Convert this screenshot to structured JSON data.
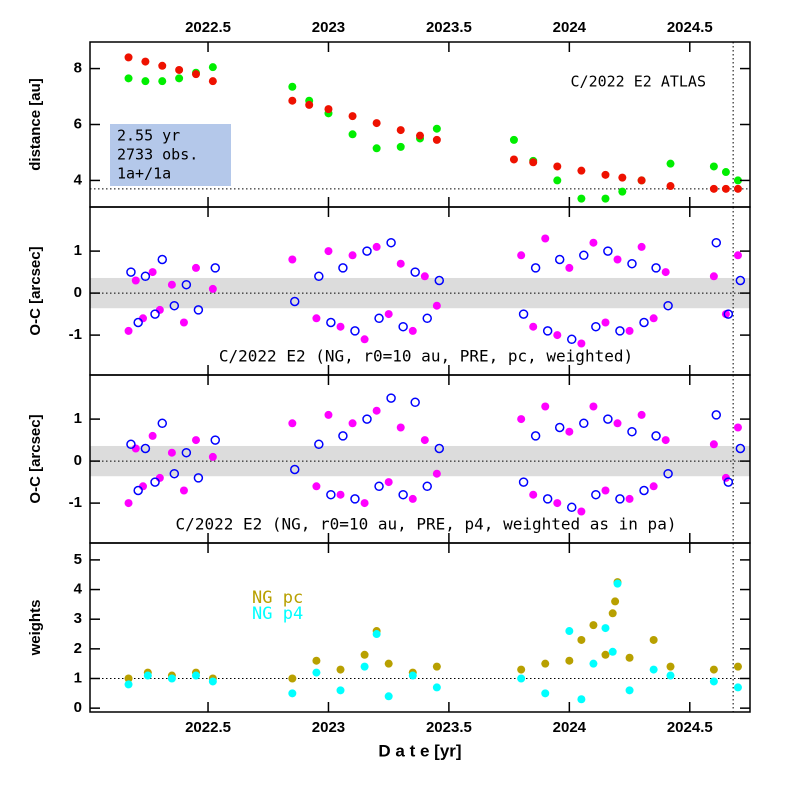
{
  "chart_data": [
    {
      "type": "scatter",
      "ylabel": "distance [au]",
      "annotation": "C/2022 E2 ATLAS",
      "info_box": [
        "2.55 yr",
        "2733 obs.",
        "1a+/1a"
      ],
      "xlim": [
        2022.01,
        2024.75
      ],
      "xticks": [
        2022.5,
        2023,
        2023.5,
        2024,
        2024.5
      ],
      "ylim": [
        3.05,
        8.95
      ],
      "yticks": [
        4,
        6,
        8
      ],
      "hline": 3.7,
      "vline": 2024.68,
      "series": [
        {
          "color": "#00ee00",
          "marker": "filled",
          "x": [
            2022.17,
            2022.24,
            2022.31,
            2022.38,
            2022.45,
            2022.52,
            2022.85,
            2022.92,
            2023.0,
            2023.1,
            2023.2,
            2023.3,
            2023.38,
            2023.45,
            2023.77,
            2023.85,
            2023.95,
            2024.05,
            2024.15,
            2024.22,
            2024.3,
            2024.42,
            2024.6,
            2024.65,
            2024.7
          ],
          "values": [
            7.65,
            7.55,
            7.55,
            7.65,
            7.85,
            8.05,
            7.35,
            6.85,
            6.4,
            5.65,
            5.15,
            5.2,
            5.5,
            5.85,
            5.45,
            4.7,
            4.0,
            3.35,
            3.35,
            3.6,
            4.0,
            4.6,
            4.5,
            4.3,
            4.0
          ]
        },
        {
          "color": "#ee1100",
          "marker": "filled",
          "x": [
            2022.17,
            2022.24,
            2022.31,
            2022.38,
            2022.45,
            2022.52,
            2022.85,
            2022.92,
            2023.0,
            2023.1,
            2023.2,
            2023.3,
            2023.38,
            2023.45,
            2023.77,
            2023.85,
            2023.95,
            2024.05,
            2024.15,
            2024.22,
            2024.3,
            2024.42,
            2024.6,
            2024.65,
            2024.7
          ],
          "values": [
            8.4,
            8.25,
            8.1,
            7.95,
            7.8,
            7.55,
            6.85,
            6.7,
            6.55,
            6.3,
            6.05,
            5.8,
            5.6,
            5.45,
            4.75,
            4.65,
            4.5,
            4.35,
            4.2,
            4.1,
            4.0,
            3.8,
            3.7,
            3.7,
            3.7
          ]
        }
      ]
    },
    {
      "type": "scatter",
      "ylabel": "O-C [arcsec]",
      "subtitle": "C/2022 E2 (NG, r0=10 au, PRE, pc, weighted)",
      "xlim": [
        2022.01,
        2024.75
      ],
      "xticks": [
        2022.5,
        2023,
        2023.5,
        2024,
        2024.5
      ],
      "ylim": [
        -1.95,
        2.05
      ],
      "yticks": [
        -1,
        0,
        1
      ],
      "hline": 0,
      "band": [
        -0.36,
        0.36
      ],
      "vline": 2024.68,
      "series": [
        {
          "color": "#ff00ff",
          "marker": "filled",
          "x": [
            2022.17,
            2022.2,
            2022.23,
            2022.27,
            2022.3,
            2022.35,
            2022.4,
            2022.45,
            2022.52,
            2022.85,
            2022.95,
            2023.0,
            2023.05,
            2023.1,
            2023.15,
            2023.2,
            2023.25,
            2023.3,
            2023.35,
            2023.4,
            2023.45,
            2023.8,
            2023.85,
            2023.9,
            2023.95,
            2024.0,
            2024.05,
            2024.1,
            2024.15,
            2024.2,
            2024.25,
            2024.3,
            2024.35,
            2024.4,
            2024.6,
            2024.65,
            2024.7
          ],
          "values": [
            -0.9,
            0.3,
            -0.6,
            0.5,
            -0.4,
            0.2,
            -0.7,
            0.6,
            0.1,
            0.8,
            -0.6,
            1.0,
            -0.8,
            0.9,
            -1.1,
            1.1,
            -0.5,
            0.7,
            -0.9,
            0.4,
            -0.3,
            0.9,
            -0.8,
            1.3,
            -1.0,
            0.6,
            -1.2,
            1.2,
            -0.7,
            0.8,
            -0.9,
            1.1,
            -0.6,
            0.5,
            0.4,
            -0.5,
            0.9
          ]
        },
        {
          "color": "#0000ff",
          "marker": "open",
          "x": [
            2022.18,
            2022.21,
            2022.24,
            2022.28,
            2022.31,
            2022.36,
            2022.41,
            2022.46,
            2022.53,
            2022.86,
            2022.96,
            2023.01,
            2023.06,
            2023.11,
            2023.16,
            2023.21,
            2023.26,
            2023.31,
            2023.36,
            2023.41,
            2023.46,
            2023.81,
            2023.86,
            2023.91,
            2023.96,
            2024.01,
            2024.06,
            2024.11,
            2024.16,
            2024.21,
            2024.26,
            2024.31,
            2024.36,
            2024.41,
            2024.61,
            2024.66,
            2024.71
          ],
          "values": [
            0.5,
            -0.7,
            0.4,
            -0.5,
            0.8,
            -0.3,
            0.2,
            -0.4,
            0.6,
            -0.2,
            0.4,
            -0.7,
            0.6,
            -0.9,
            1.0,
            -0.6,
            1.2,
            -0.8,
            0.5,
            -0.6,
            0.3,
            -0.5,
            0.6,
            -0.9,
            0.8,
            -1.1,
            0.9,
            -0.8,
            1.0,
            -0.9,
            0.7,
            -0.7,
            0.6,
            -0.3,
            1.2,
            -0.5,
            0.3
          ]
        }
      ]
    },
    {
      "type": "scatter",
      "ylabel": "O-C [arcsec]",
      "subtitle": "C/2022 E2 (NG, r0=10 au, PRE, p4, weighted as in pa)",
      "xlim": [
        2022.01,
        2024.75
      ],
      "xticks": [
        2022.5,
        2023,
        2023.5,
        2024,
        2024.5
      ],
      "ylim": [
        -1.95,
        2.05
      ],
      "yticks": [
        -1,
        0,
        1
      ],
      "hline": 0,
      "band": [
        -0.36,
        0.36
      ],
      "vline": 2024.68,
      "series": [
        {
          "color": "#ff00ff",
          "marker": "filled",
          "x": [
            2022.17,
            2022.2,
            2022.23,
            2022.27,
            2022.3,
            2022.35,
            2022.4,
            2022.45,
            2022.52,
            2022.85,
            2022.95,
            2023.0,
            2023.05,
            2023.1,
            2023.15,
            2023.2,
            2023.25,
            2023.3,
            2023.35,
            2023.4,
            2023.45,
            2023.8,
            2023.85,
            2023.9,
            2023.95,
            2024.0,
            2024.05,
            2024.1,
            2024.15,
            2024.2,
            2024.25,
            2024.3,
            2024.35,
            2024.4,
            2024.6,
            2024.65,
            2024.7
          ],
          "values": [
            -1.0,
            0.3,
            -0.6,
            0.6,
            -0.4,
            0.2,
            -0.7,
            0.5,
            0.1,
            0.9,
            -0.6,
            1.1,
            -0.8,
            0.9,
            -1.0,
            1.2,
            -0.5,
            0.8,
            -0.9,
            0.5,
            -0.3,
            1.0,
            -0.8,
            1.3,
            -1.0,
            0.7,
            -1.2,
            1.3,
            -0.7,
            0.9,
            -0.9,
            1.1,
            -0.6,
            0.5,
            0.4,
            -0.4,
            0.8
          ]
        },
        {
          "color": "#0000ff",
          "marker": "open",
          "x": [
            2022.18,
            2022.21,
            2022.24,
            2022.28,
            2022.31,
            2022.36,
            2022.41,
            2022.46,
            2022.53,
            2022.86,
            2022.96,
            2023.01,
            2023.06,
            2023.11,
            2023.16,
            2023.21,
            2023.26,
            2023.31,
            2023.36,
            2023.41,
            2023.46,
            2023.81,
            2023.86,
            2023.91,
            2023.96,
            2024.01,
            2024.06,
            2024.11,
            2024.16,
            2024.21,
            2024.26,
            2024.31,
            2024.36,
            2024.41,
            2024.61,
            2024.66,
            2024.71
          ],
          "values": [
            0.4,
            -0.7,
            0.3,
            -0.5,
            0.9,
            -0.3,
            0.2,
            -0.4,
            0.5,
            -0.2,
            0.4,
            -0.8,
            0.6,
            -0.9,
            1.0,
            -0.6,
            1.5,
            -0.8,
            1.4,
            -0.6,
            0.3,
            -0.5,
            0.6,
            -0.9,
            0.8,
            -1.1,
            0.9,
            -0.8,
            1.0,
            -0.9,
            0.7,
            -0.7,
            0.6,
            -0.3,
            1.1,
            -0.5,
            0.3
          ]
        }
      ]
    },
    {
      "type": "scatter",
      "ylabel": "weights",
      "xlabel": "D a t e [yr]",
      "xlim": [
        2022.01,
        2024.75
      ],
      "xticks": [
        2022.5,
        2023,
        2023.5,
        2024,
        2024.5
      ],
      "ylim": [
        -0.13,
        5.57
      ],
      "yticks": [
        0,
        1,
        2,
        3,
        4,
        5
      ],
      "hline": 1,
      "vline": 2024.68,
      "series": [
        {
          "name": "NG pc",
          "color": "#b8a000",
          "marker": "filled",
          "x": [
            2022.17,
            2022.25,
            2022.35,
            2022.45,
            2022.52,
            2022.85,
            2022.95,
            2023.05,
            2023.15,
            2023.2,
            2023.25,
            2023.35,
            2023.45,
            2023.8,
            2023.9,
            2024.0,
            2024.05,
            2024.1,
            2024.15,
            2024.18,
            2024.19,
            2024.2,
            2024.25,
            2024.35,
            2024.42,
            2024.6,
            2024.7
          ],
          "values": [
            1.0,
            1.2,
            1.1,
            1.2,
            1.0,
            1.0,
            1.6,
            1.3,
            1.8,
            2.6,
            1.5,
            1.2,
            1.4,
            1.3,
            1.5,
            1.6,
            2.3,
            2.8,
            1.8,
            3.2,
            3.6,
            4.25,
            1.7,
            2.3,
            1.4,
            1.3,
            1.4
          ]
        },
        {
          "name": "NG p4",
          "color": "#00ffff",
          "marker": "filled",
          "x": [
            2022.17,
            2022.25,
            2022.35,
            2022.45,
            2022.52,
            2022.85,
            2022.95,
            2023.05,
            2023.15,
            2023.2,
            2023.25,
            2023.35,
            2023.45,
            2023.8,
            2023.9,
            2024.0,
            2024.05,
            2024.1,
            2024.15,
            2024.18,
            2024.2,
            2024.25,
            2024.35,
            2024.42,
            2024.6,
            2024.7
          ],
          "values": [
            0.8,
            1.1,
            1.0,
            1.1,
            0.9,
            0.5,
            1.2,
            0.6,
            1.4,
            2.5,
            0.4,
            1.1,
            0.7,
            1.0,
            0.5,
            2.6,
            0.3,
            1.5,
            2.7,
            1.9,
            4.2,
            0.6,
            1.3,
            1.1,
            0.9,
            0.7
          ]
        }
      ]
    }
  ]
}
